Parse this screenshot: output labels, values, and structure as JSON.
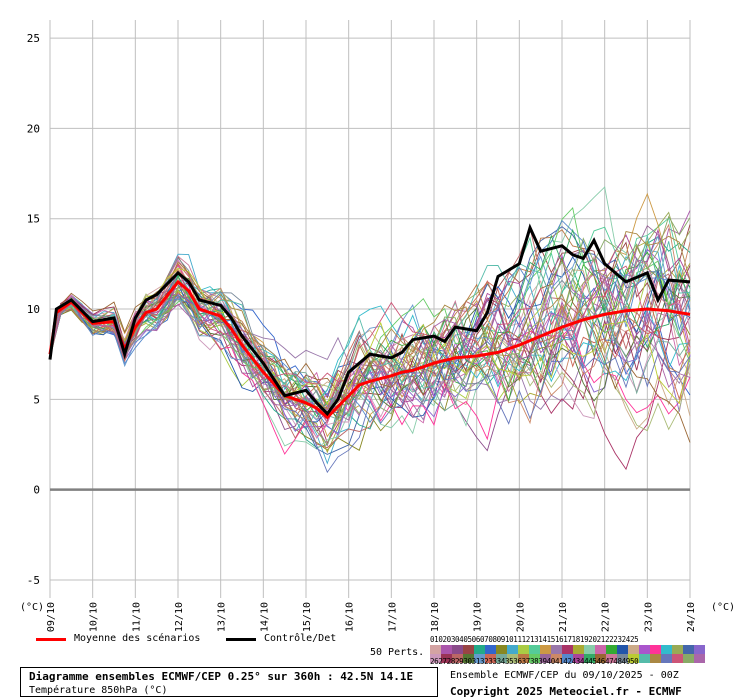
{
  "chart_data": {
    "type": "line",
    "title": "Diagramme ensembles ECMWF/CEP 0.25° sur 360h : 42.5N 14.1E",
    "subtitle": "Température 850hPa (°C)",
    "x_unit": "(°C)",
    "y_unit": "(°C)",
    "ylim": [
      -6,
      26
    ],
    "yticks": [
      -5,
      0,
      5,
      10,
      15,
      20,
      25
    ],
    "xticks": [
      "09/10",
      "10/10",
      "11/10",
      "12/10",
      "13/10",
      "14/10",
      "15/10",
      "16/10",
      "17/10",
      "18/10",
      "19/10",
      "20/10",
      "21/10",
      "22/10",
      "23/10",
      "24/10"
    ],
    "x_days": [
      0,
      15
    ],
    "grid": true,
    "series": [
      {
        "name": "Moyenne des scénarios",
        "color": "#ff0000",
        "x": [
          0,
          0.15,
          0.5,
          1,
          1.5,
          1.75,
          2,
          2.25,
          2.5,
          3,
          3.25,
          3.5,
          4,
          4.25,
          4.5,
          5,
          5.5,
          6,
          6.25,
          6.5,
          6.75,
          7,
          7.25,
          7.5,
          8,
          8.25,
          8.5,
          9,
          9.5,
          10,
          10.5,
          11,
          11.5,
          12,
          12.5,
          13,
          13.5,
          14,
          14.5,
          15
        ],
        "values": [
          7.5,
          9.8,
          10.4,
          9.2,
          9.3,
          7.8,
          9.0,
          9.8,
          10.0,
          11.5,
          11.0,
          10.0,
          9.6,
          8.9,
          8.0,
          6.5,
          5.2,
          4.8,
          4.5,
          4.0,
          4.6,
          5.2,
          5.8,
          6.0,
          6.3,
          6.5,
          6.6,
          7.0,
          7.3,
          7.4,
          7.6,
          8.0,
          8.5,
          9.0,
          9.4,
          9.7,
          9.9,
          10.0,
          9.9,
          9.7
        ]
      },
      {
        "name": "Contrôle/Det",
        "color": "#000000",
        "x": [
          0,
          0.15,
          0.5,
          1,
          1.5,
          1.75,
          2,
          2.25,
          2.5,
          3,
          3.25,
          3.5,
          4,
          4.25,
          4.5,
          5,
          5.5,
          6,
          6.25,
          6.5,
          6.75,
          7,
          7.25,
          7.5,
          8,
          8.25,
          8.5,
          9,
          9.25,
          9.5,
          10,
          10.25,
          10.5,
          11,
          11.25,
          11.5,
          12,
          12.25,
          12.5,
          12.75,
          13,
          13.5,
          14,
          14.25,
          14.5,
          15
        ],
        "values": [
          7.2,
          10.0,
          10.5,
          9.3,
          9.5,
          7.5,
          9.5,
          10.5,
          10.8,
          12.0,
          11.5,
          10.5,
          10.2,
          9.5,
          8.5,
          7.0,
          5.2,
          5.5,
          4.8,
          4.2,
          5.0,
          6.5,
          7.0,
          7.5,
          7.3,
          7.6,
          8.3,
          8.5,
          8.2,
          9.0,
          8.8,
          9.8,
          11.8,
          12.5,
          14.5,
          13.2,
          13.5,
          13.0,
          12.8,
          13.8,
          12.5,
          11.5,
          12.0,
          10.5,
          11.6,
          11.5
        ]
      }
    ],
    "perturbations_count": 50
  },
  "legend": {
    "mean_label": "Moyenne des scénarios",
    "control_label": "Contrôle/Det",
    "perts_label": "50 Perts.",
    "palette_numbers_top": "01020304050607080910111213141516171819202122232425",
    "palette_numbers_bottom": "26272829303132333435363738394041424344454647484950",
    "palette_colors_top": [
      "#d4a3a3",
      "#aa55aa",
      "#8a4a8a",
      "#994444",
      "#22aa88",
      "#3366cc",
      "#888822",
      "#44aacc",
      "#aacc44",
      "#55cc99",
      "#cc9944",
      "#9977aa",
      "#aa3366",
      "#aaaa33",
      "#88ccaa",
      "#cc66aa",
      "#33aa33",
      "#2255aa",
      "#ccaa88",
      "#aa55cc",
      "#ff3399",
      "#33bbcc",
      "#99aa55",
      "#4466aa",
      "#8866cc"
    ],
    "palette_colors_bottom": [
      "#cc99bb",
      "#993355",
      "#bb6666",
      "#557733",
      "#6699cc",
      "#cc6655",
      "#77aa99",
      "#aabb77",
      "#bb7744",
      "#66cc66",
      "#996699",
      "#cc8866",
      "#5588cc",
      "#aa4499",
      "#33aa66",
      "#996633",
      "#cc7799",
      "#778899",
      "#bbcc33",
      "#55bbaa",
      "#aa8844",
      "#6677bb",
      "#cc5577",
      "#88aa66",
      "#aa66aa"
    ]
  },
  "footer": {
    "title": "Diagramme ensembles ECMWF/CEP 0.25° sur 360h : 42.5N 14.1E",
    "subtitle": "Température 850hPa (°C)",
    "run_info": "Ensemble ECMWF/CEP du 09/10/2025 - 00Z",
    "copyright": "Copyright 2025 Meteociel.fr - ECMWF"
  }
}
